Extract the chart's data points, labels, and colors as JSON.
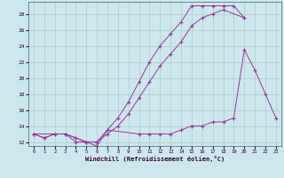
{
  "xlabel": "Windchill (Refroidissement éolien,°C)",
  "bg_color": "#cce8ee",
  "grid_color": "#aacccc",
  "line_color": "#993399",
  "xlim": [
    -0.5,
    23.5
  ],
  "ylim": [
    11.5,
    29.5
  ],
  "yticks": [
    12,
    14,
    16,
    18,
    20,
    22,
    24,
    26,
    28
  ],
  "xticks": [
    0,
    1,
    2,
    3,
    4,
    5,
    6,
    7,
    8,
    9,
    10,
    11,
    12,
    13,
    14,
    15,
    16,
    17,
    18,
    19,
    20,
    21,
    22,
    23
  ],
  "line1_x": [
    0,
    1,
    2,
    3,
    4,
    5,
    6,
    7,
    8,
    9,
    10,
    11,
    12,
    13,
    14,
    15,
    16,
    17,
    18,
    19,
    20
  ],
  "line1_y": [
    13.0,
    12.5,
    13.0,
    13.0,
    12.5,
    12.0,
    12.0,
    13.5,
    15.0,
    17.0,
    19.5,
    22.0,
    24.0,
    25.5,
    27.0,
    29.0,
    29.0,
    29.0,
    29.0,
    29.0,
    27.5
  ],
  "line2_x": [
    0,
    1,
    2,
    3,
    4,
    5,
    6,
    7,
    8,
    9,
    10,
    11,
    12,
    13,
    14,
    15,
    16,
    17,
    18,
    20
  ],
  "line2_y": [
    13.0,
    12.5,
    13.0,
    13.0,
    12.0,
    12.0,
    12.0,
    13.0,
    14.0,
    15.5,
    17.5,
    19.5,
    21.5,
    23.0,
    24.5,
    26.5,
    27.5,
    28.0,
    28.5,
    27.5
  ],
  "line3_x": [
    0,
    3,
    4,
    5,
    6,
    7,
    10,
    11,
    12,
    13,
    14,
    15,
    16,
    17,
    18,
    19,
    20,
    21,
    22,
    23
  ],
  "line3_y": [
    13.0,
    13.0,
    12.5,
    12.0,
    11.5,
    13.5,
    13.0,
    13.0,
    13.0,
    13.0,
    13.5,
    14.0,
    14.0,
    14.5,
    14.5,
    15.0,
    23.5,
    21.0,
    18.0,
    15.0
  ]
}
